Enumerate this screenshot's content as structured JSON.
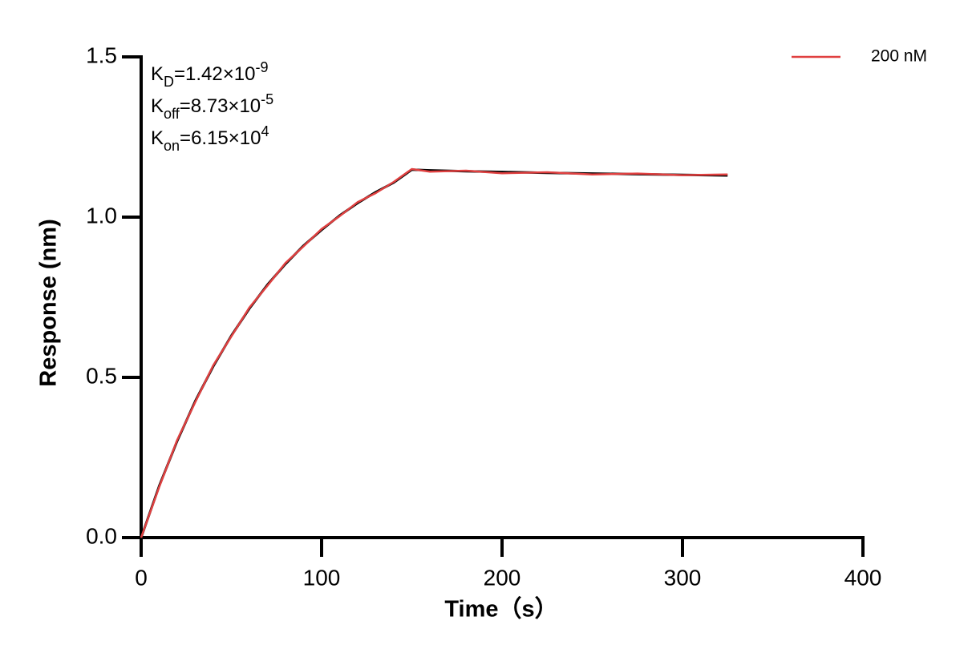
{
  "chart_data": {
    "type": "line",
    "x_label": "Time（s）",
    "y_label": "Response (nm)",
    "xlim": [
      0,
      400
    ],
    "ylim": [
      0,
      1.5
    ],
    "xticks": [
      0,
      100,
      200,
      300,
      400
    ],
    "yticks": [
      {
        "value": 0,
        "label": "0.0"
      },
      0.5,
      {
        "value": 1,
        "label": "1.0"
      },
      1.5
    ],
    "annotations": [
      {
        "base": "K",
        "sub": "D",
        "text": "=1.42×10",
        "sup": "-9"
      },
      {
        "base": "K",
        "sub": "off",
        "text": "=8.73×10",
        "sup": "-5"
      },
      {
        "base": "K",
        "sub": "on",
        "text": "=6.15×10",
        "sup": "4"
      }
    ],
    "x": [
      0,
      10,
      20,
      30,
      40,
      50,
      60,
      70,
      80,
      90,
      100,
      110,
      120,
      130,
      140,
      150,
      160,
      180,
      200,
      225,
      250,
      275,
      300,
      325
    ],
    "series": [
      {
        "color": "#000000",
        "values": [
          0,
          0.161,
          0.302,
          0.426,
          0.535,
          0.63,
          0.715,
          0.789,
          0.854,
          0.911,
          0.96,
          1.005,
          1.044,
          1.078,
          1.108,
          1.148,
          1.146,
          1.143,
          1.141,
          1.138,
          1.136,
          1.134,
          1.132,
          1.13
        ]
      },
      {
        "name": "200 nM",
        "color": "#e04040",
        "values": [
          0,
          0.158,
          0.305,
          0.423,
          0.538,
          0.628,
          0.718,
          0.786,
          0.857,
          0.909,
          0.963,
          1.003,
          1.047,
          1.075,
          1.11,
          1.15,
          1.142,
          1.145,
          1.137,
          1.14,
          1.133,
          1.136,
          1.131,
          1.133
        ]
      }
    ]
  }
}
